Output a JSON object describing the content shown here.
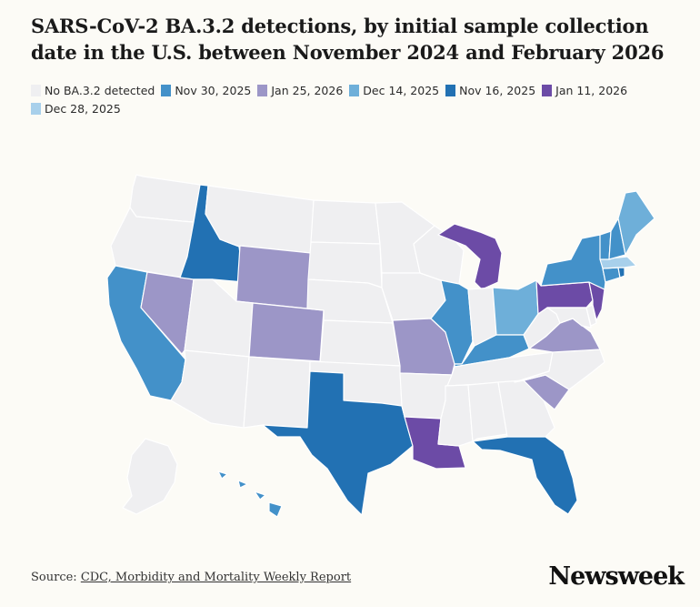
{
  "title": "SARS-CoV-2 BA.3.2 detections, by initial sample collection date in the U.S. between November 2024 and February 2026",
  "legend": [
    {
      "label": "No BA.3.2 detected",
      "color": "#efeff1"
    },
    {
      "label": "Nov 30, 2025",
      "color": "#4391c9"
    },
    {
      "label": "Jan 25, 2026",
      "color": "#9c96c7"
    },
    {
      "label": "Dec 14, 2025",
      "color": "#6eafd9"
    },
    {
      "label": "Nov 16, 2025",
      "color": "#2271b3"
    },
    {
      "label": "Jan 11, 2026",
      "color": "#6c4ba6"
    },
    {
      "label": "Dec 28, 2025",
      "color": "#a8d0eb"
    }
  ],
  "states": {
    "WA": "No BA.3.2 detected",
    "OR": "No BA.3.2 detected",
    "CA": "Nov 30, 2025",
    "NV": "Jan 25, 2026",
    "ID": "Nov 16, 2025",
    "MT": "No BA.3.2 detected",
    "WY": "Jan 25, 2026",
    "UT": "No BA.3.2 detected",
    "AZ": "No BA.3.2 detected",
    "CO": "Jan 25, 2026",
    "NM": "No BA.3.2 detected",
    "ND": "No BA.3.2 detected",
    "SD": "No BA.3.2 detected",
    "NE": "No BA.3.2 detected",
    "KS": "No BA.3.2 detected",
    "OK": "No BA.3.2 detected",
    "TX": "Nov 16, 2025",
    "MN": "No BA.3.2 detected",
    "IA": "No BA.3.2 detected",
    "MO": "Jan 25, 2026",
    "AR": "No BA.3.2 detected",
    "LA": "Jan 11, 2026",
    "WI": "No BA.3.2 detected",
    "IL": "Nov 30, 2025",
    "MI": "Jan 11, 2026",
    "IN": "No BA.3.2 detected",
    "OH": "Dec 14, 2025",
    "KY": "Nov 30, 2025",
    "TN": "No BA.3.2 detected",
    "MS": "No BA.3.2 detected",
    "AL": "No BA.3.2 detected",
    "GA": "No BA.3.2 detected",
    "FL": "Nov 16, 2025",
    "SC": "Jan 25, 2026",
    "NC": "No BA.3.2 detected",
    "VA": "Jan 25, 2026",
    "WV": "No BA.3.2 detected",
    "MD": "No BA.3.2 detected",
    "DE": "No BA.3.2 detected",
    "PA": "Jan 11, 2026",
    "NJ": "Jan 11, 2026",
    "NY": "Nov 30, 2025",
    "CT": "Nov 30, 2025",
    "RI": "Nov 16, 2025",
    "MA": "Dec 28, 2025",
    "VT": "Nov 30, 2025",
    "NH": "Nov 30, 2025",
    "ME": "Dec 14, 2025",
    "AK": "No BA.3.2 detected",
    "HI": "Nov 30, 2025"
  },
  "source": {
    "prefix": "Source: ",
    "link_text": "CDC, Morbidity and Mortality Weekly Report"
  },
  "brand": "Newsweek"
}
